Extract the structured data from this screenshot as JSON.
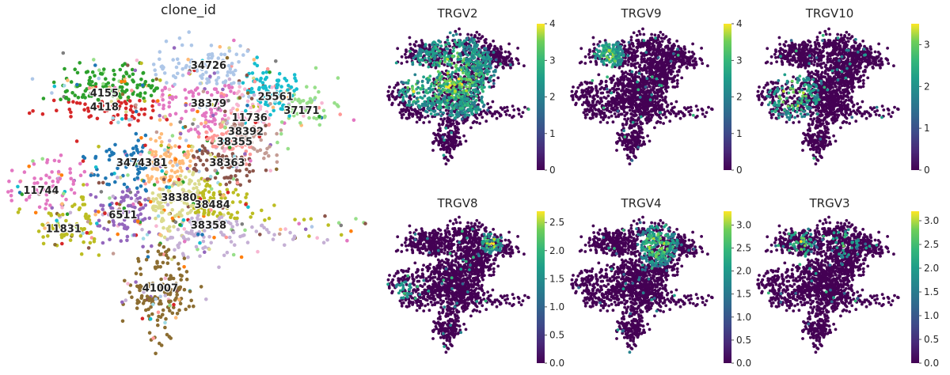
{
  "figure": {
    "left_title": "clone_id"
  },
  "chart_data": [
    {
      "type": "scatter",
      "title": "clone_id",
      "description_kind": "UMAP embedding colored by categorical clone_id",
      "axes": "off",
      "grid": false,
      "legend": "labels on data",
      "clone_labels": [
        {
          "id": "34726",
          "color": "#aec7e8",
          "center": [
            0.55,
            0.12
          ]
        },
        {
          "id": "4155",
          "color": "#2ca02c",
          "center": [
            0.27,
            0.2
          ]
        },
        {
          "id": "4118",
          "color": "#d62728",
          "center": [
            0.27,
            0.24
          ]
        },
        {
          "id": "25561",
          "color": "#17becf",
          "center": [
            0.73,
            0.21
          ]
        },
        {
          "id": "37171",
          "color": "#98df8a",
          "center": [
            0.8,
            0.25
          ]
        },
        {
          "id": "38379",
          "color": "#e377c2",
          "center": [
            0.55,
            0.23
          ]
        },
        {
          "id": "11736",
          "color": "#f7b6d2",
          "center": [
            0.66,
            0.27
          ]
        },
        {
          "id": "38392",
          "color": "#c49c94",
          "center": [
            0.65,
            0.31
          ]
        },
        {
          "id": "38355",
          "color": "#ff9896",
          "center": [
            0.62,
            0.34
          ]
        },
        {
          "id": "34743",
          "color": "#1f77b4",
          "center": [
            0.35,
            0.4
          ]
        },
        {
          "id": "81",
          "color": "#ffbb78",
          "center": [
            0.42,
            0.4
          ]
        },
        {
          "id": "38363",
          "color": "#8c564b",
          "center": [
            0.6,
            0.4
          ]
        },
        {
          "id": "11744",
          "color": "#e377c2",
          "center": [
            0.1,
            0.48
          ]
        },
        {
          "id": "38380",
          "color": "#dbdb8d",
          "center": [
            0.47,
            0.5
          ]
        },
        {
          "id": "38484",
          "color": "#bcbd22",
          "center": [
            0.56,
            0.52
          ]
        },
        {
          "id": "6511",
          "color": "#9467bd",
          "center": [
            0.32,
            0.55
          ]
        },
        {
          "id": "11831",
          "color": "#bcbd22",
          "center": [
            0.16,
            0.59
          ]
        },
        {
          "id": "38358",
          "color": "#c5b0d5",
          "center": [
            0.55,
            0.58
          ]
        },
        {
          "id": "41007",
          "color": "#8c6d31",
          "center": [
            0.42,
            0.76
          ]
        }
      ]
    },
    {
      "type": "scatter",
      "title": "TRGV2",
      "colormap": "viridis",
      "colorbar_ticks": [
        "0",
        "1",
        "2",
        "3",
        "4"
      ],
      "vmin": 0,
      "vmax": 4,
      "hot_region": "broad upper-left arm and center"
    },
    {
      "type": "scatter",
      "title": "TRGV9",
      "colormap": "viridis",
      "colorbar_ticks": [
        "0",
        "1",
        "2",
        "3",
        "4"
      ],
      "vmin": 0,
      "vmax": 4,
      "hot_region": "upper-left lobe"
    },
    {
      "type": "scatter",
      "title": "TRGV10",
      "colormap": "viridis",
      "colorbar_ticks": [
        "0",
        "1",
        "2",
        "3"
      ],
      "vmin": 0,
      "vmax": 3.5,
      "hot_region": "left arm"
    },
    {
      "type": "scatter",
      "title": "TRGV8",
      "colormap": "viridis",
      "colorbar_ticks": [
        "0.0",
        "0.5",
        "1.0",
        "1.5",
        "2.0",
        "2.5"
      ],
      "vmin": 0,
      "vmax": 2.7,
      "hot_region": "upper-right and far left"
    },
    {
      "type": "scatter",
      "title": "TRGV4",
      "colormap": "viridis",
      "colorbar_ticks": [
        "0.0",
        "0.5",
        "1.0",
        "1.5",
        "2.0",
        "2.5",
        "3.0"
      ],
      "vmin": 0,
      "vmax": 3.3,
      "hot_region": "upper-right band"
    },
    {
      "type": "scatter",
      "title": "TRGV3",
      "colormap": "viridis",
      "colorbar_ticks": [
        "0.0",
        "0.5",
        "1.0",
        "1.5",
        "2.0",
        "2.5",
        "3.0"
      ],
      "vmin": 0,
      "vmax": 3.2,
      "hot_region": "upper-left sparse"
    }
  ]
}
